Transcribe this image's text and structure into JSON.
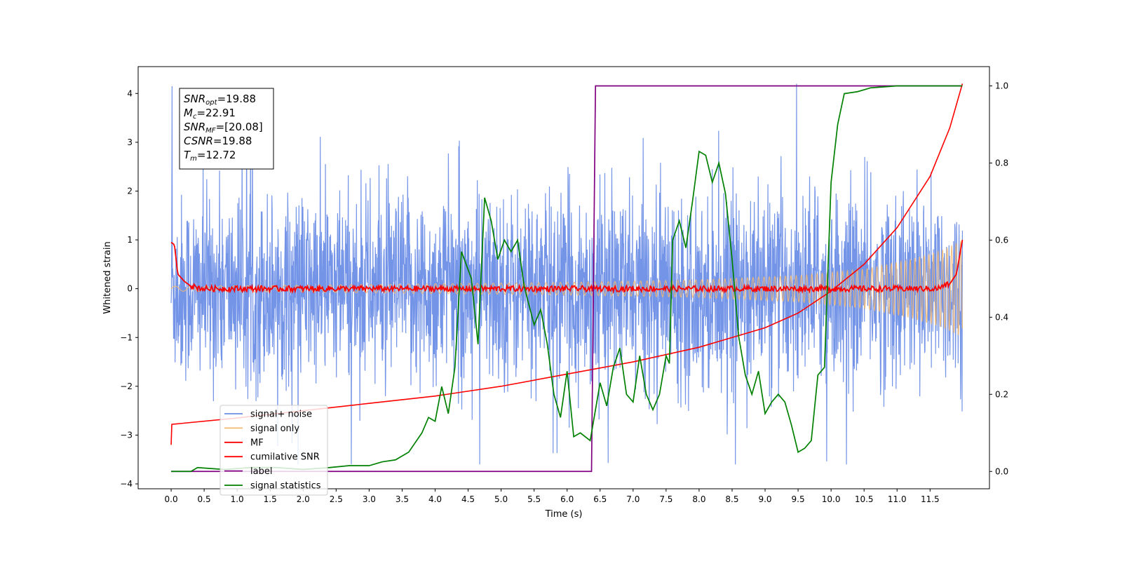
{
  "chart_data": {
    "type": "line",
    "xlabel": "Time (s)",
    "ylabel": "Whitened strain",
    "xlim": [
      -0.5,
      12.4
    ],
    "ylim_left": [
      -4.1,
      4.55
    ],
    "ylim_right": [
      -0.045,
      1.05
    ],
    "x_ticks": [
      "0.0",
      "0.5",
      "1.0",
      "1.5",
      "2.0",
      "2.5",
      "3.0",
      "3.5",
      "4.0",
      "4.5",
      "5.0",
      "5.5",
      "6.0",
      "6.5",
      "7.0",
      "7.5",
      "8.0",
      "8.5",
      "9.0",
      "9.5",
      "10.0",
      "10.5",
      "11.0",
      "11.5"
    ],
    "y_ticks_left": [
      "−4",
      "−3",
      "−2",
      "−1",
      "0",
      "1",
      "2",
      "3",
      "4"
    ],
    "y_ticks_right": [
      "0.0",
      "0.2",
      "0.4",
      "0.6",
      "0.8",
      "1.0"
    ],
    "grid": false,
    "legend_placement": "lower-left",
    "legend": [
      "signal+ noise",
      "signal only",
      "MF",
      "cumilative SNR",
      "label",
      "signal statistics"
    ],
    "annotation": {
      "snr_opt": {
        "sym": "SNR",
        "sub": "opt",
        "val": "=19.88"
      },
      "mc": {
        "sym": "M",
        "sub": "c",
        "val": "=22.91"
      },
      "snr_mf": {
        "sym": "SNR",
        "sub": "MF",
        "val": "=[20.08]"
      },
      "csnr": {
        "sym": "CSNR",
        "sub": "",
        "val": "=19.88"
      },
      "tm": {
        "sym": "T",
        "sub": "m",
        "val": "=12.72"
      }
    },
    "series": [
      {
        "name": "signal+ noise",
        "axis": "left",
        "color": "#6d8ee6",
        "description_envelope": {
          "x_range": [
            0.0,
            11.99
          ],
          "amplitude": 1.6,
          "max_spike": 4.2
        }
      },
      {
        "name": "signal only",
        "axis": "left",
        "color": "#f5b870",
        "envelope_points": [
          [
            0.0,
            0.05
          ],
          [
            2.0,
            0.07
          ],
          [
            4.0,
            0.1
          ],
          [
            6.0,
            0.13
          ],
          [
            8.0,
            0.18
          ],
          [
            9.5,
            0.27
          ],
          [
            10.5,
            0.4
          ],
          [
            11.2,
            0.6
          ],
          [
            11.7,
            0.8
          ],
          [
            11.99,
            1.0
          ]
        ]
      },
      {
        "name": "MF",
        "axis": "left",
        "color": "#ff0000",
        "points": [
          [
            0.0,
            0.95
          ],
          [
            0.05,
            0.9
          ],
          [
            0.1,
            0.3
          ],
          [
            0.2,
            0.15
          ],
          [
            0.3,
            0.05
          ],
          [
            0.5,
            0.0
          ],
          [
            11.6,
            0.0
          ],
          [
            11.8,
            0.1
          ],
          [
            11.9,
            0.3
          ],
          [
            11.99,
            1.0
          ]
        ]
      },
      {
        "name": "cumilative SNR",
        "axis": "left",
        "color": "#ff0000",
        "points": [
          [
            0.0,
            -3.2
          ],
          [
            0.01,
            -2.78
          ],
          [
            1.0,
            -2.65
          ],
          [
            2.0,
            -2.5
          ],
          [
            3.0,
            -2.35
          ],
          [
            4.0,
            -2.2
          ],
          [
            5.0,
            -2.0
          ],
          [
            6.0,
            -1.75
          ],
          [
            7.0,
            -1.5
          ],
          [
            8.0,
            -1.2
          ],
          [
            9.0,
            -0.8
          ],
          [
            9.5,
            -0.5
          ],
          [
            10.0,
            -0.05
          ],
          [
            10.5,
            0.5
          ],
          [
            11.0,
            1.25
          ],
          [
            11.5,
            2.3
          ],
          [
            11.8,
            3.3
          ],
          [
            11.99,
            4.2
          ]
        ]
      },
      {
        "name": "label",
        "axis": "right",
        "color": "#800080",
        "points": [
          [
            0.0,
            0.0
          ],
          [
            6.37,
            0.0
          ],
          [
            6.43,
            1.0
          ],
          [
            11.99,
            1.0
          ]
        ]
      },
      {
        "name": "signal statistics",
        "axis": "right",
        "color": "#008000",
        "points": [
          [
            0.0,
            0.0
          ],
          [
            0.3,
            0.0
          ],
          [
            0.4,
            0.01
          ],
          [
            0.8,
            0.005
          ],
          [
            1.2,
            0.01
          ],
          [
            1.6,
            0.01
          ],
          [
            2.0,
            0.005
          ],
          [
            2.4,
            0.01
          ],
          [
            2.7,
            0.015
          ],
          [
            3.0,
            0.015
          ],
          [
            3.2,
            0.025
          ],
          [
            3.4,
            0.03
          ],
          [
            3.6,
            0.05
          ],
          [
            3.8,
            0.1
          ],
          [
            3.9,
            0.14
          ],
          [
            4.0,
            0.13
          ],
          [
            4.1,
            0.22
          ],
          [
            4.2,
            0.15
          ],
          [
            4.3,
            0.27
          ],
          [
            4.4,
            0.57
          ],
          [
            4.55,
            0.5
          ],
          [
            4.65,
            0.33
          ],
          [
            4.75,
            0.71
          ],
          [
            4.85,
            0.65
          ],
          [
            4.95,
            0.55
          ],
          [
            5.05,
            0.6
          ],
          [
            5.15,
            0.57
          ],
          [
            5.25,
            0.6
          ],
          [
            5.35,
            0.48
          ],
          [
            5.5,
            0.38
          ],
          [
            5.6,
            0.42
          ],
          [
            5.7,
            0.33
          ],
          [
            5.8,
            0.2
          ],
          [
            5.9,
            0.14
          ],
          [
            6.0,
            0.26
          ],
          [
            6.1,
            0.09
          ],
          [
            6.2,
            0.1
          ],
          [
            6.35,
            0.08
          ],
          [
            6.5,
            0.23
          ],
          [
            6.6,
            0.17
          ],
          [
            6.7,
            0.27
          ],
          [
            6.8,
            0.32
          ],
          [
            6.9,
            0.2
          ],
          [
            7.0,
            0.18
          ],
          [
            7.1,
            0.3
          ],
          [
            7.2,
            0.2
          ],
          [
            7.3,
            0.16
          ],
          [
            7.4,
            0.2
          ],
          [
            7.5,
            0.3
          ],
          [
            7.55,
            0.28
          ],
          [
            7.6,
            0.6
          ],
          [
            7.7,
            0.65
          ],
          [
            7.8,
            0.58
          ],
          [
            7.9,
            0.7
          ],
          [
            8.0,
            0.83
          ],
          [
            8.1,
            0.82
          ],
          [
            8.2,
            0.75
          ],
          [
            8.3,
            0.8
          ],
          [
            8.4,
            0.72
          ],
          [
            8.5,
            0.55
          ],
          [
            8.6,
            0.35
          ],
          [
            8.7,
            0.25
          ],
          [
            8.8,
            0.2
          ],
          [
            8.9,
            0.26
          ],
          [
            9.0,
            0.15
          ],
          [
            9.1,
            0.18
          ],
          [
            9.2,
            0.2
          ],
          [
            9.3,
            0.18
          ],
          [
            9.4,
            0.12
          ],
          [
            9.5,
            0.05
          ],
          [
            9.6,
            0.06
          ],
          [
            9.7,
            0.08
          ],
          [
            9.8,
            0.25
          ],
          [
            9.9,
            0.27
          ],
          [
            10.0,
            0.75
          ],
          [
            10.1,
            0.9
          ],
          [
            10.2,
            0.98
          ],
          [
            10.4,
            0.985
          ],
          [
            10.6,
            0.995
          ],
          [
            11.0,
            1.0
          ],
          [
            11.99,
            1.0
          ]
        ]
      }
    ]
  }
}
